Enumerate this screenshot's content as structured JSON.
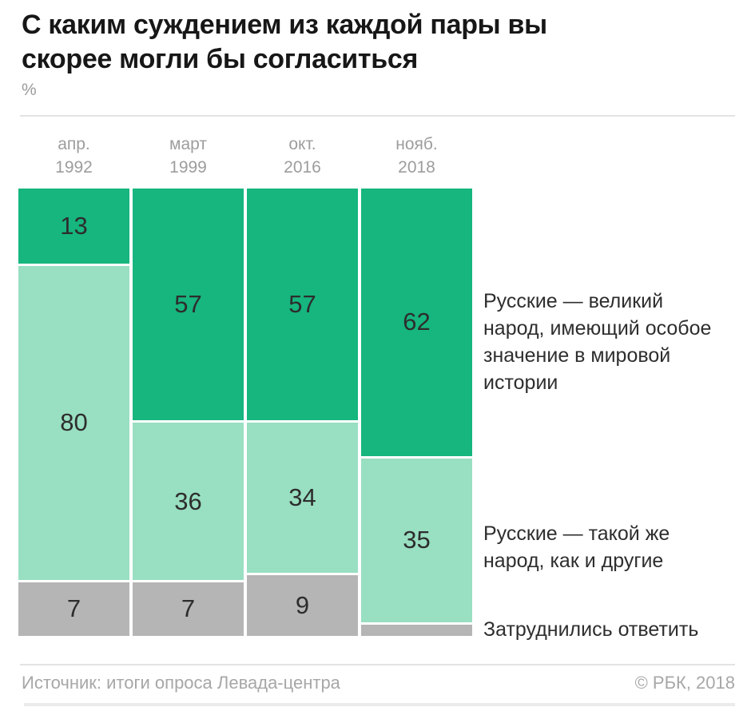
{
  "header": {
    "title_lines": [
      "С каким суждением из каждой пары вы",
      "скорее могли бы согласиться"
    ],
    "unit": "%"
  },
  "chart_data": {
    "type": "bar",
    "subtype": "stacked-100-percent-column",
    "title": "С каким суждением из каждой пары вы скорее могли бы согласиться",
    "ylabel": "%",
    "ylim": [
      0,
      100
    ],
    "grid": false,
    "legend_position": "right",
    "categories": [
      {
        "month": "апр.",
        "year": "1992"
      },
      {
        "month": "март",
        "year": "1999"
      },
      {
        "month": "окт.",
        "year": "2016"
      },
      {
        "month": "нояб.",
        "year": "2018"
      }
    ],
    "series": [
      {
        "key": "great-nation",
        "name": "Русские — великий народ, имеющий особое значение в мировой истории",
        "color": "#16b67e",
        "values": [
          13,
          57,
          57,
          62
        ],
        "labels": [
          "13",
          "57",
          "57",
          "62"
        ]
      },
      {
        "key": "same-as-others",
        "name": "Русские — такой же народ, как и другие",
        "color": "#99dfc2",
        "values": [
          80,
          36,
          34,
          35
        ],
        "labels": [
          "80",
          "36",
          "34",
          "35"
        ]
      },
      {
        "key": "undecided",
        "name": "Затруднились ответить",
        "color": "#b5b5b5",
        "values": [
          7,
          7,
          9,
          3
        ],
        "labels": [
          "7",
          "7",
          "9",
          null
        ]
      }
    ]
  },
  "legend": {
    "items": [
      {
        "text": "Русские — великий\nнарод, имеющий особое\nзначение в мировой\nистории"
      },
      {
        "text": "Русские — такой же\nнарод, как и другие"
      },
      {
        "text": "Затруднились ответить"
      }
    ]
  },
  "footer": {
    "source": "Источник: итоги опроса Левада-центра",
    "copyright": "© РБК, 2018"
  }
}
